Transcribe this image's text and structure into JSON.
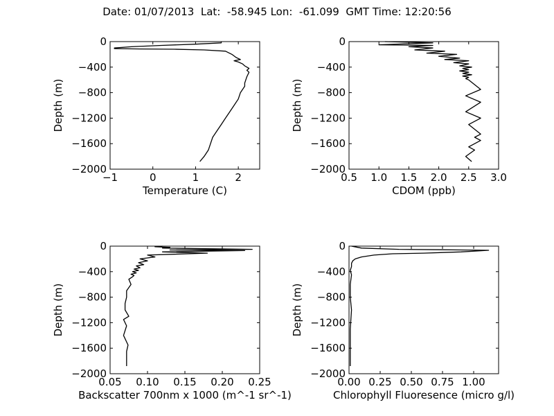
{
  "title": "Date: 01/07/2013  Lat:  -58.945 Lon:  -61.099  GMT Time: 12:20:56",
  "chart_data": [
    {
      "type": "line",
      "xlabel": "Temperature (C)",
      "ylabel": "Depth (m)",
      "xlim": [
        -1,
        2.5
      ],
      "ylim": [
        -2000,
        0
      ],
      "xticks": [
        -1,
        0,
        1,
        2
      ],
      "xtick_labels": [
        "−1",
        "0",
        "1",
        "2"
      ],
      "yticks": [
        0,
        -400,
        -800,
        -1200,
        -1600,
        -2000
      ],
      "ytick_labels": [
        "0",
        "−400",
        "−800",
        "−1200",
        "−1600",
        "−2000"
      ],
      "grid": false,
      "series": [
        {
          "x": [
            1.6,
            1.6,
            1.0,
            0.2,
            -0.5,
            -0.9,
            -0.9,
            -0.3,
            0.5,
            1.2,
            1.7,
            1.85,
            1.95,
            2.05,
            1.9,
            2.0,
            2.1,
            2.15,
            2.2,
            2.25,
            2.2,
            2.25,
            2.2,
            2.15,
            2.15,
            2.1,
            2.05,
            2.0,
            1.9,
            1.8,
            1.7,
            1.6,
            1.5,
            1.4,
            1.35,
            1.3,
            1.2,
            1.1
          ],
          "y": [
            0,
            -20,
            -40,
            -60,
            -80,
            -100,
            -110,
            -115,
            -120,
            -130,
            -150,
            -200,
            -250,
            -280,
            -300,
            -320,
            -350,
            -380,
            -400,
            -420,
            -450,
            -480,
            -550,
            -650,
            -700,
            -750,
            -800,
            -900,
            -1000,
            -1100,
            -1200,
            -1300,
            -1400,
            -1500,
            -1600,
            -1700,
            -1800,
            -1880
          ]
        }
      ]
    },
    {
      "type": "line",
      "xlabel": "CDOM (ppb)",
      "ylabel": "Depth (m)",
      "xlim": [
        0.5,
        3.0
      ],
      "ylim": [
        -2000,
        0
      ],
      "xticks": [
        0.5,
        1.0,
        1.5,
        2.0,
        2.5,
        3.0
      ],
      "xtick_labels": [
        "0.5",
        "1.0",
        "1.5",
        "2.0",
        "2.5",
        "3.0"
      ],
      "yticks": [
        0,
        -400,
        -800,
        -1200,
        -1600,
        -2000
      ],
      "ytick_labels": [
        "0",
        "−400",
        "−800",
        "−1200",
        "−1600",
        "−2000"
      ],
      "grid": false,
      "series": [
        {
          "x": [
            1.1,
            1.9,
            1.0,
            1.9,
            1.5,
            1.9,
            1.6,
            2.1,
            1.8,
            2.3,
            2.0,
            2.35,
            2.1,
            2.5,
            2.25,
            2.5,
            2.35,
            2.55,
            2.4,
            2.5,
            2.35,
            2.5,
            2.4,
            2.55,
            2.4,
            2.5,
            2.45,
            2.5,
            2.7,
            2.45,
            2.7,
            2.45,
            2.7,
            2.5,
            2.7,
            2.6,
            2.7,
            2.5,
            2.6,
            2.45,
            2.55
          ],
          "y": [
            0,
            -20,
            -50,
            -60,
            -80,
            -100,
            -130,
            -150,
            -180,
            -200,
            -230,
            -260,
            -280,
            -300,
            -330,
            -350,
            -380,
            -400,
            -420,
            -440,
            -460,
            -480,
            -500,
            -520,
            -540,
            -560,
            -580,
            -600,
            -750,
            -850,
            -950,
            -1100,
            -1200,
            -1300,
            -1450,
            -1500,
            -1550,
            -1650,
            -1700,
            -1800,
            -1880
          ]
        }
      ]
    },
    {
      "type": "line",
      "xlabel": "Backscatter 700nm x 1000 (m^-1 sr^-1)",
      "ylabel": "Depth (m)",
      "xlim": [
        0.05,
        0.25
      ],
      "ylim": [
        -2000,
        0
      ],
      "xticks": [
        0.05,
        0.1,
        0.15,
        0.2,
        0.25
      ],
      "xtick_labels": [
        "0.05",
        "0.10",
        "0.15",
        "0.20",
        "0.25"
      ],
      "yticks": [
        0,
        -400,
        -800,
        -1200,
        -1600,
        -2000
      ],
      "ytick_labels": [
        "0",
        "−400",
        "−800",
        "−1200",
        "−1600",
        "−2000"
      ],
      "grid": false,
      "series": [
        {
          "x": [
            0.12,
            0.11,
            0.13,
            0.12,
            0.24,
            0.13,
            0.23,
            0.12,
            0.18,
            0.1,
            0.11,
            0.09,
            0.1,
            0.088,
            0.095,
            0.085,
            0.09,
            0.082,
            0.088,
            0.08,
            0.085,
            0.078,
            0.082,
            0.08,
            0.075,
            0.078,
            0.072,
            0.072,
            0.07,
            0.07,
            0.075,
            0.068,
            0.072,
            0.068,
            0.074,
            0.072,
            0.072
          ],
          "y": [
            0,
            -10,
            -20,
            -30,
            -50,
            -60,
            -70,
            -90,
            -110,
            -140,
            -170,
            -200,
            -230,
            -260,
            -290,
            -310,
            -340,
            -360,
            -380,
            -400,
            -420,
            -440,
            -460,
            -480,
            -520,
            -600,
            -700,
            -800,
            -900,
            -1000,
            -1100,
            -1150,
            -1250,
            -1400,
            -1550,
            -1650,
            -1880
          ]
        }
      ]
    },
    {
      "type": "line",
      "xlabel": "Chlorophyll Fluoresence (micro g/l)",
      "ylabel": "Depth (m)",
      "xlim": [
        0.0,
        1.2
      ],
      "ylim": [
        -2000,
        0
      ],
      "xticks": [
        0.0,
        0.25,
        0.5,
        0.75,
        1.0
      ],
      "xtick_labels": [
        "0.00",
        "0.25",
        "0.50",
        "0.75",
        "1.00"
      ],
      "yticks": [
        0,
        -400,
        -800,
        -1200,
        -1600,
        -2000
      ],
      "ytick_labels": [
        "0",
        "−400",
        "−800",
        "−1200",
        "−1600",
        "−2000"
      ],
      "grid": false,
      "series": [
        {
          "x": [
            0.02,
            0.1,
            0.4,
            0.9,
            1.12,
            0.9,
            0.6,
            0.35,
            0.2,
            0.1,
            0.05,
            0.03,
            0.02,
            0.02,
            0.01,
            0.02,
            0.01,
            0.01,
            0.02,
            0.01,
            0.01,
            0.01
          ],
          "y": [
            0,
            -30,
            -50,
            -60,
            -65,
            -90,
            -110,
            -120,
            -140,
            -170,
            -200,
            -230,
            -270,
            -320,
            -380,
            -450,
            -600,
            -800,
            -1000,
            -1300,
            -1600,
            -1880
          ]
        }
      ]
    }
  ]
}
